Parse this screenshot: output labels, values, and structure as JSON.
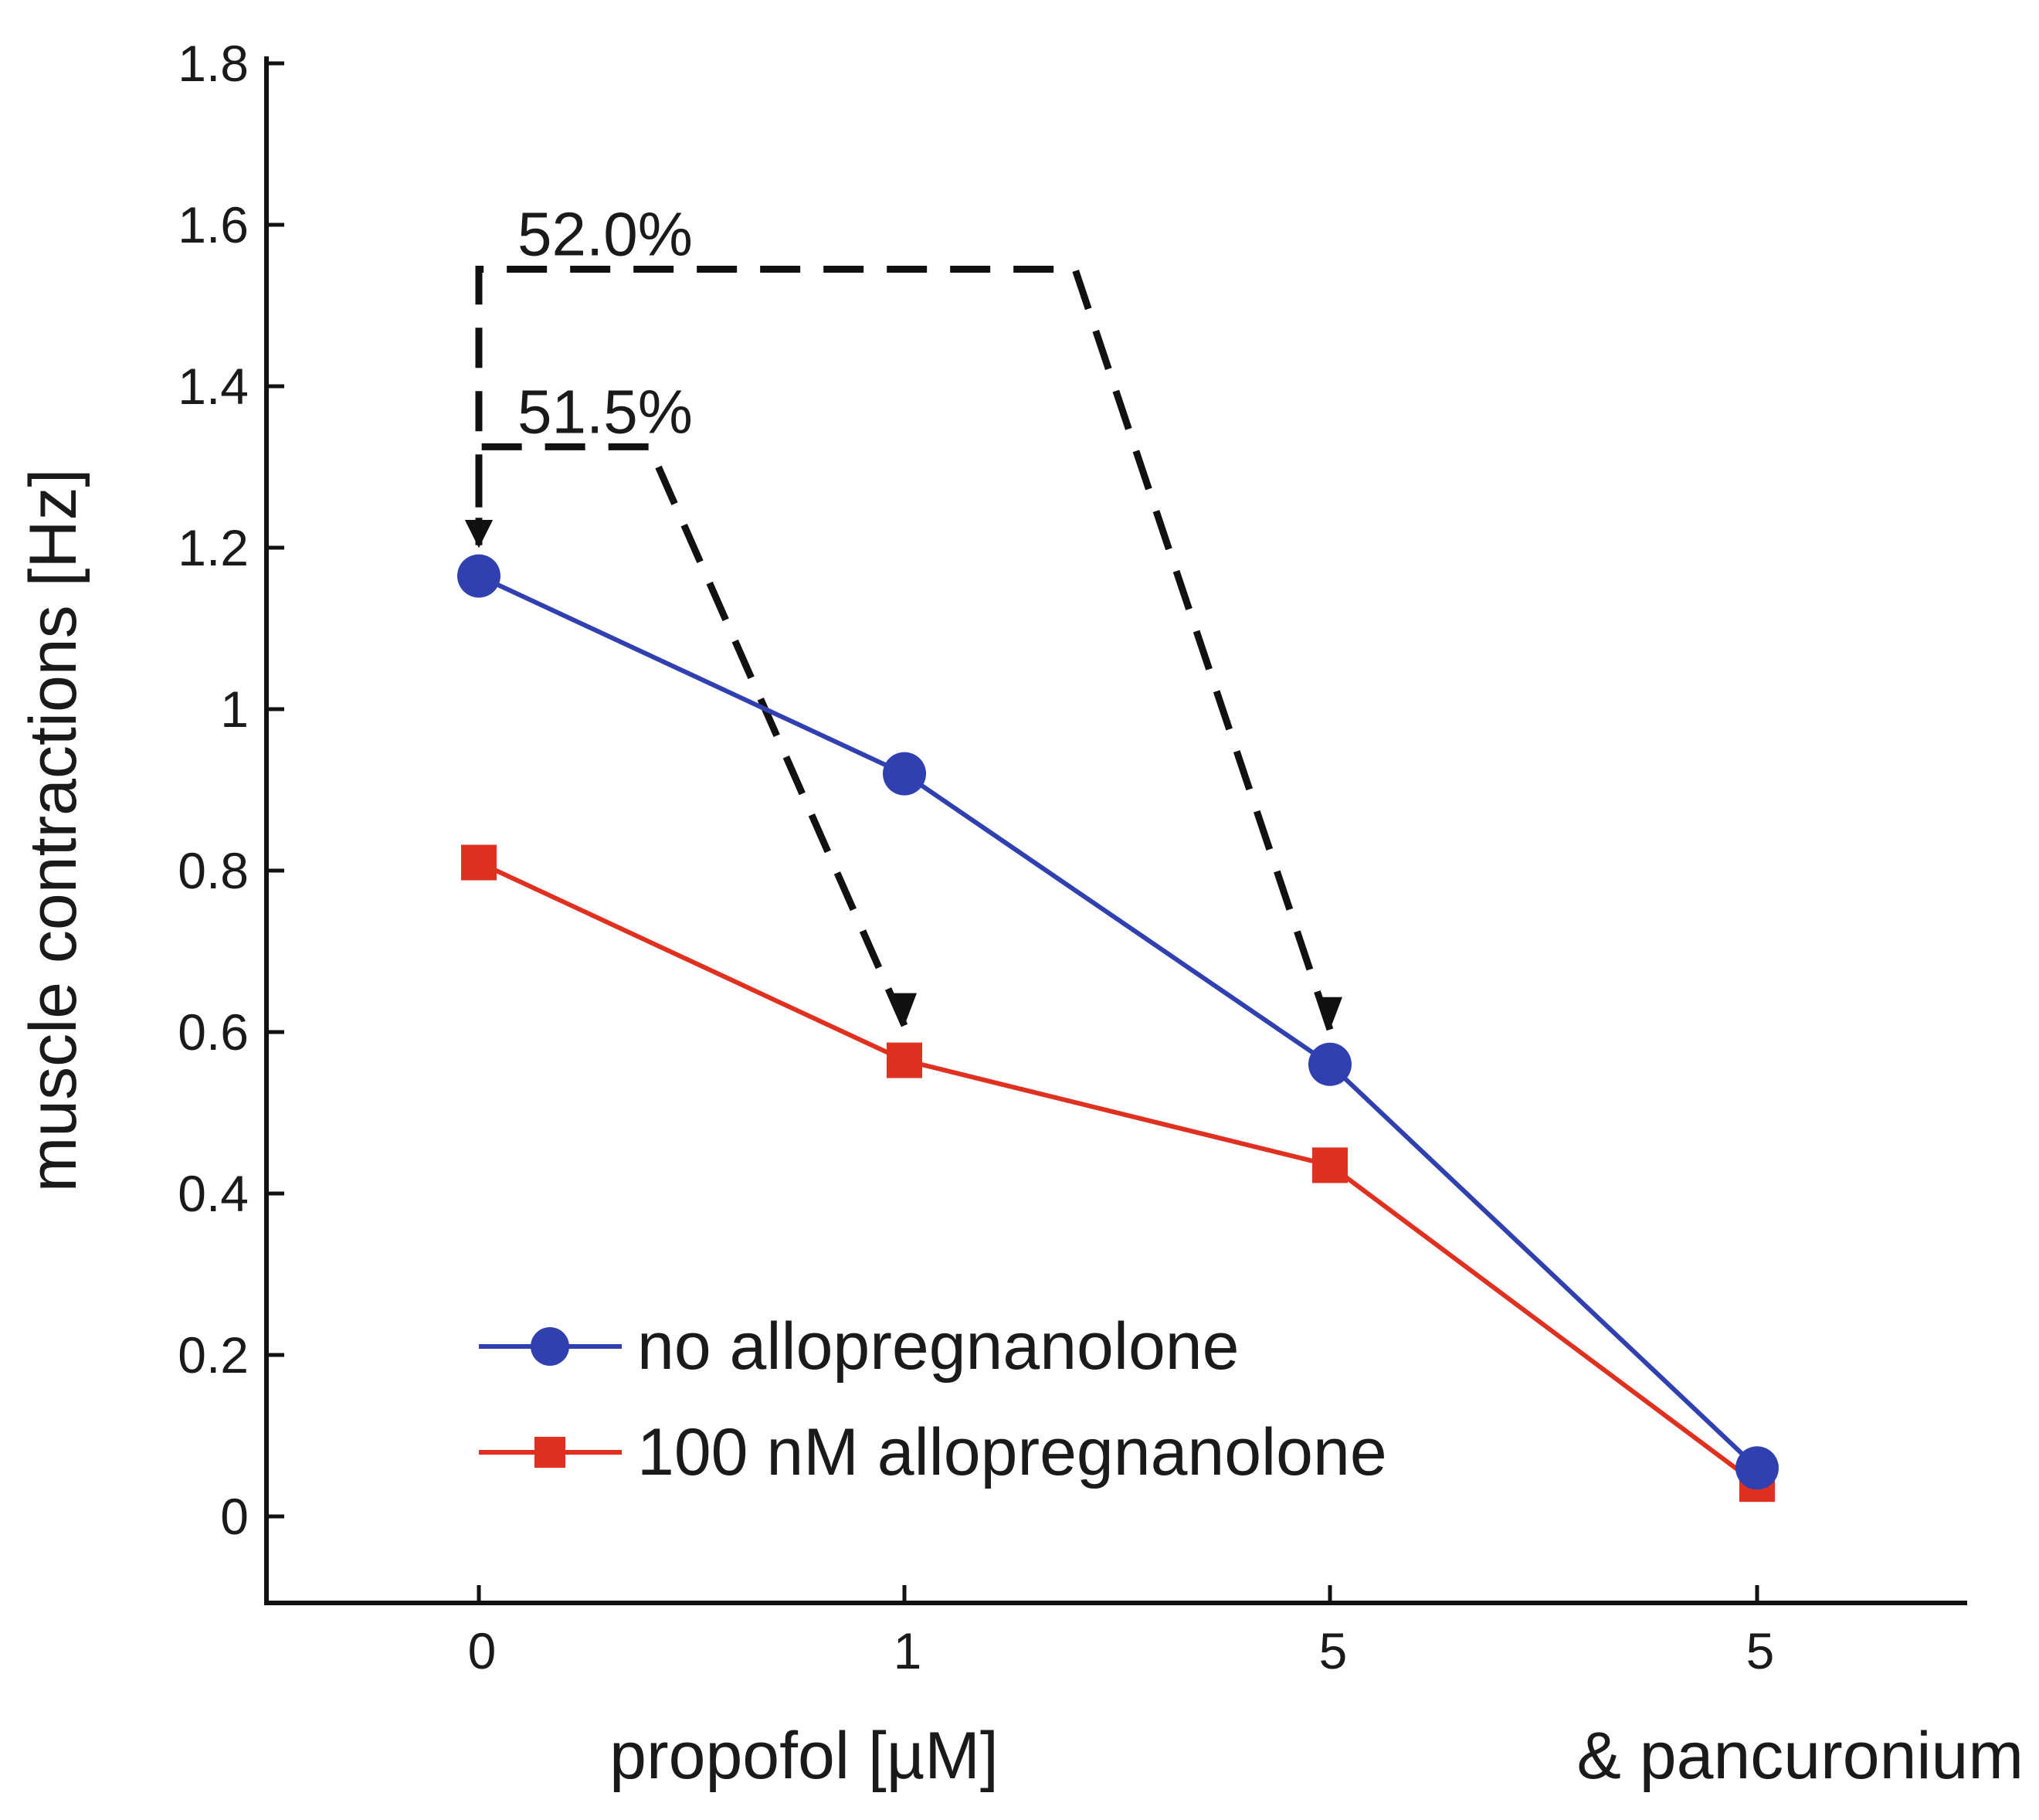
{
  "chart_data": {
    "type": "line",
    "title": "",
    "xlabel": "propofol [µM]",
    "xlabel_extra": "& pancuronium",
    "ylabel": "muscle contractions [Hz]",
    "ylim": [
      -0.1,
      1.8
    ],
    "yticks": [
      0,
      0.2,
      0.4,
      0.6,
      0.8,
      1,
      1.2,
      1.4,
      1.6,
      1.8
    ],
    "ytick_labels": [
      "0",
      "0.2",
      "0.4",
      "0.6",
      "0.8",
      "1",
      "1.2",
      "1.4",
      "1.6",
      "1.8"
    ],
    "categories": [
      "0",
      "1",
      "5",
      "5"
    ],
    "series": [
      {
        "name": "no allopregnanolone",
        "color": "#3040b0",
        "marker": "circle",
        "values": [
          1.165,
          0.92,
          0.56,
          0.06
        ]
      },
      {
        "name": "100 nM allopregnanolone",
        "color": "#e03020",
        "marker": "square",
        "values": [
          0.81,
          0.565,
          0.435,
          0.04
        ]
      }
    ],
    "annotations": [
      {
        "text": "52.0%",
        "from": {
          "category_index": 2,
          "series_index": 0
        },
        "to": {
          "category_index": 0,
          "series_index": 0
        },
        "bracket_y": 1.545
      },
      {
        "text": "51.5%",
        "from": {
          "category_index": 1,
          "series_index": 1
        },
        "to": {
          "category_index": 0,
          "series_index": 0
        },
        "bracket_y": 1.325
      }
    ],
    "legend": {
      "position": "bottom-left"
    },
    "grid": false
  }
}
